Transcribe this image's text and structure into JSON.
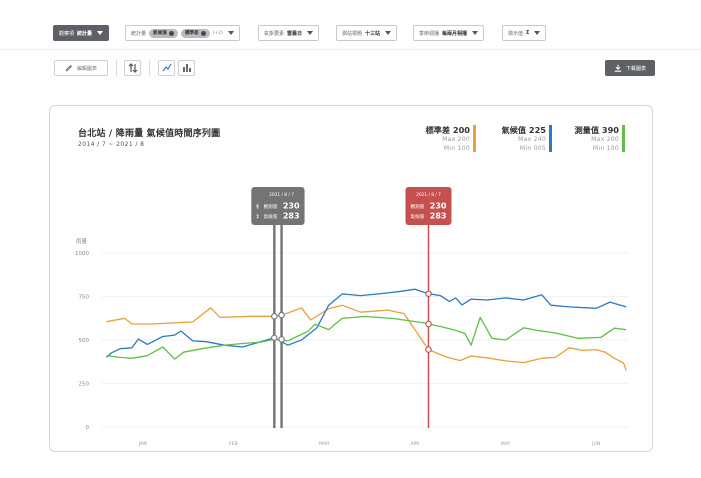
{
  "filters": [
    {
      "label": "觀察項",
      "value": "統計量",
      "dark": true
    },
    {
      "label": "統計量",
      "chips": [
        "氣候值",
        "標準差"
      ],
      "extra": "(+2)"
    },
    {
      "label": "氣象要素",
      "value": "雷暴日"
    },
    {
      "label": "測站標題",
      "value": "十三站"
    },
    {
      "label": "季節週播",
      "value": "每兩月相播"
    },
    {
      "label": "標示值",
      "value": "Σ"
    }
  ],
  "toolbar": {
    "edit_label": "編輯圖表",
    "download_label": "下載圖表"
  },
  "colors": {
    "std": "#eaa03a",
    "climate": "#2a7bc4",
    "measured": "#5fbf48",
    "cursor_grey": "#747474",
    "cursor_red": "#c5504f"
  },
  "legend": [
    {
      "name": "標準差 200",
      "max": "Max 200",
      "min": "Min 100",
      "color": "#eaa03a"
    },
    {
      "name": "氣候值 225",
      "max": "Max 240",
      "min": "Min 005",
      "color": "#2a7bc4"
    },
    {
      "name": "測量值 390",
      "max": "Max 200",
      "min": "Min 100",
      "color": "#5fbf48"
    }
  ],
  "cursors": [
    {
      "x": 1.45,
      "date": "2021 / 8 / 7",
      "measured_label": "觀測值",
      "measured": "230",
      "climate_label": "氣候值",
      "climate": "283",
      "color": "#747474",
      "markers": [
        636,
        513
      ]
    },
    {
      "x": 1.53,
      "date": "2021 / 8 / 7",
      "measured_label": "觀測值",
      "measured": "230",
      "climate_label": "氣候值",
      "climate": "283",
      "color": "#747474",
      "markers": [
        643,
        504
      ]
    },
    {
      "x": 3.15,
      "date": "2021 / 8 / 7",
      "measured_label": "觀測值",
      "measured": "230",
      "climate_label": "氣候值",
      "climate": "283",
      "color": "#c5504f",
      "markers": [
        766,
        592,
        445
      ]
    }
  ],
  "chart_data": {
    "type": "line",
    "title": "台北站 / 降雨量 氣候值時間序列圖",
    "subtitle": "2014 / 7 ~ 2021 / 8",
    "ylabel": "雨量",
    "ylim": [
      0,
      1000
    ],
    "yticks": [
      0,
      250,
      500,
      750,
      1000
    ],
    "xlim": [
      -0.45,
      5.35
    ],
    "xticks": [
      {
        "x": 0,
        "label": "JAN"
      },
      {
        "x": 1,
        "label": "FEB"
      },
      {
        "x": 2,
        "label": "MAR"
      },
      {
        "x": 3,
        "label": "APR"
      },
      {
        "x": 4,
        "label": "MAY"
      },
      {
        "x": 5,
        "label": "JUN"
      }
    ],
    "series": [
      {
        "name": "標準差",
        "key": "std",
        "points": [
          [
            -0.4,
            605
          ],
          [
            -0.2,
            625
          ],
          [
            -0.12,
            592
          ],
          [
            0.1,
            592
          ],
          [
            0.3,
            597
          ],
          [
            0.55,
            604
          ],
          [
            0.75,
            685
          ],
          [
            0.85,
            630
          ],
          [
            1.2,
            636
          ],
          [
            1.45,
            636
          ],
          [
            1.6,
            655
          ],
          [
            1.75,
            685
          ],
          [
            1.85,
            615
          ],
          [
            2.05,
            680
          ],
          [
            2.2,
            700
          ],
          [
            2.4,
            660
          ],
          [
            2.7,
            672
          ],
          [
            2.88,
            652
          ],
          [
            3.0,
            560
          ],
          [
            3.15,
            445
          ],
          [
            3.35,
            402
          ],
          [
            3.5,
            382
          ],
          [
            3.62,
            408
          ],
          [
            3.78,
            398
          ],
          [
            4.0,
            380
          ],
          [
            4.2,
            370
          ],
          [
            4.4,
            395
          ],
          [
            4.55,
            400
          ],
          [
            4.7,
            455
          ],
          [
            4.85,
            440
          ],
          [
            5.0,
            445
          ],
          [
            5.1,
            430
          ],
          [
            5.2,
            395
          ],
          [
            5.3,
            368
          ],
          [
            5.33,
            325
          ]
        ]
      },
      {
        "name": "氣候值",
        "key": "climate",
        "points": [
          [
            -0.4,
            400
          ],
          [
            -0.35,
            425
          ],
          [
            -0.25,
            450
          ],
          [
            -0.12,
            455
          ],
          [
            -0.05,
            505
          ],
          [
            0.05,
            475
          ],
          [
            0.22,
            520
          ],
          [
            0.35,
            528
          ],
          [
            0.42,
            552
          ],
          [
            0.55,
            495
          ],
          [
            0.7,
            490
          ],
          [
            0.9,
            470
          ],
          [
            1.1,
            460
          ],
          [
            1.3,
            490
          ],
          [
            1.45,
            513
          ],
          [
            1.6,
            470
          ],
          [
            1.75,
            500
          ],
          [
            1.92,
            570
          ],
          [
            2.05,
            700
          ],
          [
            2.2,
            765
          ],
          [
            2.4,
            755
          ],
          [
            2.6,
            765
          ],
          [
            2.85,
            780
          ],
          [
            3.0,
            792
          ],
          [
            3.15,
            766
          ],
          [
            3.28,
            755
          ],
          [
            3.38,
            722
          ],
          [
            3.45,
            742
          ],
          [
            3.52,
            702
          ],
          [
            3.62,
            735
          ],
          [
            3.8,
            730
          ],
          [
            4.0,
            742
          ],
          [
            4.2,
            730
          ],
          [
            4.4,
            760
          ],
          [
            4.5,
            700
          ],
          [
            4.7,
            690
          ],
          [
            5.0,
            682
          ],
          [
            5.15,
            718
          ],
          [
            5.33,
            690
          ]
        ]
      },
      {
        "name": "測量值",
        "key": "measured",
        "points": [
          [
            -0.4,
            410
          ],
          [
            -0.25,
            400
          ],
          [
            -0.12,
            395
          ],
          [
            0.05,
            410
          ],
          [
            0.22,
            460
          ],
          [
            0.35,
            390
          ],
          [
            0.45,
            430
          ],
          [
            0.65,
            450
          ],
          [
            0.9,
            470
          ],
          [
            1.1,
            480
          ],
          [
            1.3,
            488
          ],
          [
            1.45,
            504
          ],
          [
            1.6,
            495
          ],
          [
            1.7,
            520
          ],
          [
            1.82,
            550
          ],
          [
            1.9,
            590
          ],
          [
            2.05,
            560
          ],
          [
            2.2,
            625
          ],
          [
            2.45,
            635
          ],
          [
            2.75,
            624
          ],
          [
            2.95,
            610
          ],
          [
            3.1,
            598
          ],
          [
            3.15,
            592
          ],
          [
            3.3,
            575
          ],
          [
            3.45,
            555
          ],
          [
            3.55,
            538
          ],
          [
            3.62,
            470
          ],
          [
            3.72,
            630
          ],
          [
            3.85,
            510
          ],
          [
            4.0,
            500
          ],
          [
            4.2,
            570
          ],
          [
            4.35,
            555
          ],
          [
            4.55,
            540
          ],
          [
            4.8,
            510
          ],
          [
            5.05,
            515
          ],
          [
            5.2,
            568
          ],
          [
            5.33,
            560
          ]
        ]
      }
    ]
  }
}
